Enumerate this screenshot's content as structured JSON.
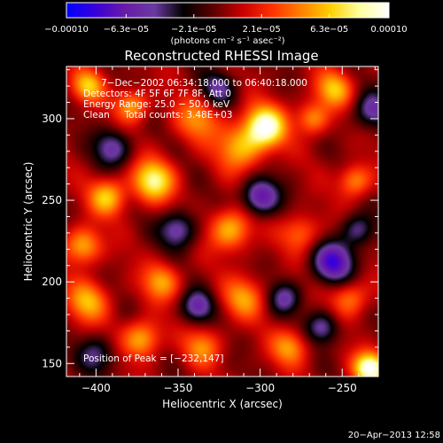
{
  "chart_data": {
    "type": "heatmap",
    "title": "Reconstructed RHESSI Image",
    "xlabel": "Heliocentric X (arcsec)",
    "ylabel": "Heliocentric Y (arcsec)",
    "xlim": [
      -418,
      -228
    ],
    "ylim": [
      142,
      332
    ],
    "x_ticks": [
      -400,
      -350,
      -300,
      -250
    ],
    "y_ticks": [
      150,
      200,
      250,
      300
    ],
    "x_tick_labels": [
      "−400",
      "−350",
      "−300",
      "−250"
    ],
    "y_tick_labels": [
      "150",
      "200",
      "250",
      "300"
    ],
    "colorbar": {
      "range": [
        -0.0001,
        0.0001
      ],
      "ticks": [
        -0.0001,
        -6.3e-05,
        -2.1e-05,
        2.1e-05,
        6.3e-05,
        0.0001
      ],
      "tick_labels": [
        "−0.00010",
        "−6.3e−05",
        "−2.1e−05",
        "2.1e−05",
        "6.3e−05",
        "0.00010"
      ],
      "units": "(photons cm⁻² s⁻¹ asec⁻²)"
    },
    "peak": [
      -232,
      147
    ],
    "info_lines": [
      "7−Dec−2002 06:34:18.000 to 06:40:18.000",
      "Detectors: 4F 5F 6F 7F 8F, Att 0",
      "Energy Range: 25.0 − 50.0 keV",
      "Clean     Total counts: 3.48E+03"
    ],
    "peak_label": "Position of Peak = [−232,147]",
    "sources": [
      {
        "x": -233,
        "y": 147,
        "amp": 1.0,
        "sigma": 7
      },
      {
        "x": -297,
        "y": 295,
        "amp": 0.95,
        "sigma": 9
      },
      {
        "x": -312,
        "y": 282,
        "amp": 0.55,
        "sigma": 10
      },
      {
        "x": -365,
        "y": 262,
        "amp": 0.78,
        "sigma": 9
      },
      {
        "x": -393,
        "y": 252,
        "amp": 0.62,
        "sigma": 8
      },
      {
        "x": -255,
        "y": 318,
        "amp": 0.58,
        "sigma": 8
      },
      {
        "x": -268,
        "y": 300,
        "amp": 0.5,
        "sigma": 7
      },
      {
        "x": -338,
        "y": 300,
        "amp": 0.45,
        "sigma": 10
      },
      {
        "x": -378,
        "y": 308,
        "amp": 0.55,
        "sigma": 7
      },
      {
        "x": -405,
        "y": 320,
        "amp": 0.6,
        "sigma": 7
      },
      {
        "x": -318,
        "y": 232,
        "amp": 0.62,
        "sigma": 9
      },
      {
        "x": -275,
        "y": 230,
        "amp": 0.42,
        "sigma": 8
      },
      {
        "x": -242,
        "y": 262,
        "amp": 0.52,
        "sigma": 7
      },
      {
        "x": -408,
        "y": 222,
        "amp": 0.6,
        "sigma": 8
      },
      {
        "x": -405,
        "y": 188,
        "amp": 0.55,
        "sigma": 9
      },
      {
        "x": -360,
        "y": 200,
        "amp": 0.52,
        "sigma": 8
      },
      {
        "x": -310,
        "y": 190,
        "amp": 0.48,
        "sigma": 9
      },
      {
        "x": -372,
        "y": 165,
        "amp": 0.6,
        "sigma": 8
      },
      {
        "x": -335,
        "y": 160,
        "amp": 0.45,
        "sigma": 8
      },
      {
        "x": -282,
        "y": 160,
        "amp": 0.5,
        "sigma": 8
      },
      {
        "x": -245,
        "y": 190,
        "amp": 0.45,
        "sigma": 8
      },
      {
        "x": -300,
        "y": 252,
        "amp": -0.7,
        "sigma": 8
      },
      {
        "x": -350,
        "y": 232,
        "amp": -0.55,
        "sigma": 8
      },
      {
        "x": -255,
        "y": 212,
        "amp": -0.75,
        "sigma": 9
      },
      {
        "x": -285,
        "y": 190,
        "amp": -0.45,
        "sigma": 7
      },
      {
        "x": -390,
        "y": 282,
        "amp": -0.5,
        "sigma": 8
      },
      {
        "x": -326,
        "y": 318,
        "amp": -0.45,
        "sigma": 8
      },
      {
        "x": -232,
        "y": 305,
        "amp": -0.5,
        "sigma": 8
      },
      {
        "x": -338,
        "y": 185,
        "amp": -0.55,
        "sigma": 7
      },
      {
        "x": -400,
        "y": 155,
        "amp": -0.4,
        "sigma": 8
      },
      {
        "x": -262,
        "y": 172,
        "amp": -0.5,
        "sigma": 7
      },
      {
        "x": -240,
        "y": 232,
        "amp": -0.45,
        "sigma": 7
      }
    ],
    "colormap": [
      "#0000ff",
      "#3a00d8",
      "#6a1aa8",
      "#6a3aa0",
      "#000000",
      "#5c0000",
      "#c80000",
      "#ff3000",
      "#ff8000",
      "#ffd000",
      "#ffffa0",
      "#ffffff"
    ]
  },
  "timestamp": "20−Apr−2013 12:58"
}
